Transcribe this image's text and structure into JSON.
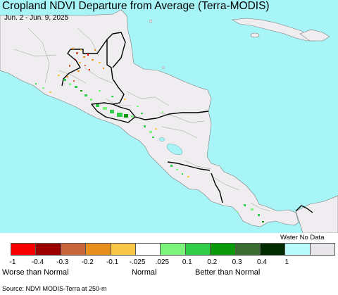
{
  "title": "Cropland NDVI Departure from Average (Terra-MODIS)",
  "subtitle": "Jun. 2 - Jun. 9, 2025",
  "colors": {
    "ocean": "#a8f5f8",
    "land": "#efedef",
    "border": "#000000",
    "admin_border": "#9a9a9a"
  },
  "legend": {
    "bins": [
      {
        "color": "#f70000"
      },
      {
        "color": "#9a0000"
      },
      {
        "color": "#c8663d"
      },
      {
        "color": "#e8901d"
      },
      {
        "color": "#fac849"
      },
      {
        "color": "#ffffff"
      },
      {
        "color": "#7df47b"
      },
      {
        "color": "#2fcd4a"
      },
      {
        "color": "#0a9a0c"
      },
      {
        "color": "#3a6b31"
      },
      {
        "color": "#022b00"
      },
      {
        "color": "#b9fbfa"
      },
      {
        "color": "#e8e6ea"
      }
    ],
    "tick_labels": [
      "-1",
      "-0.4",
      "-0.3",
      "-0.2",
      "-0.1",
      "-.025",
      ".025",
      "0.1",
      "0.2",
      "0.3",
      "0.4",
      "1"
    ],
    "worse_label": "Worse than Normal",
    "normal_label": "Normal",
    "better_label": "Better than Normal",
    "water_label": "Water",
    "nodata_label": "No Data"
  },
  "source": "Source: NDVI MODIS-Terra at 250-m"
}
